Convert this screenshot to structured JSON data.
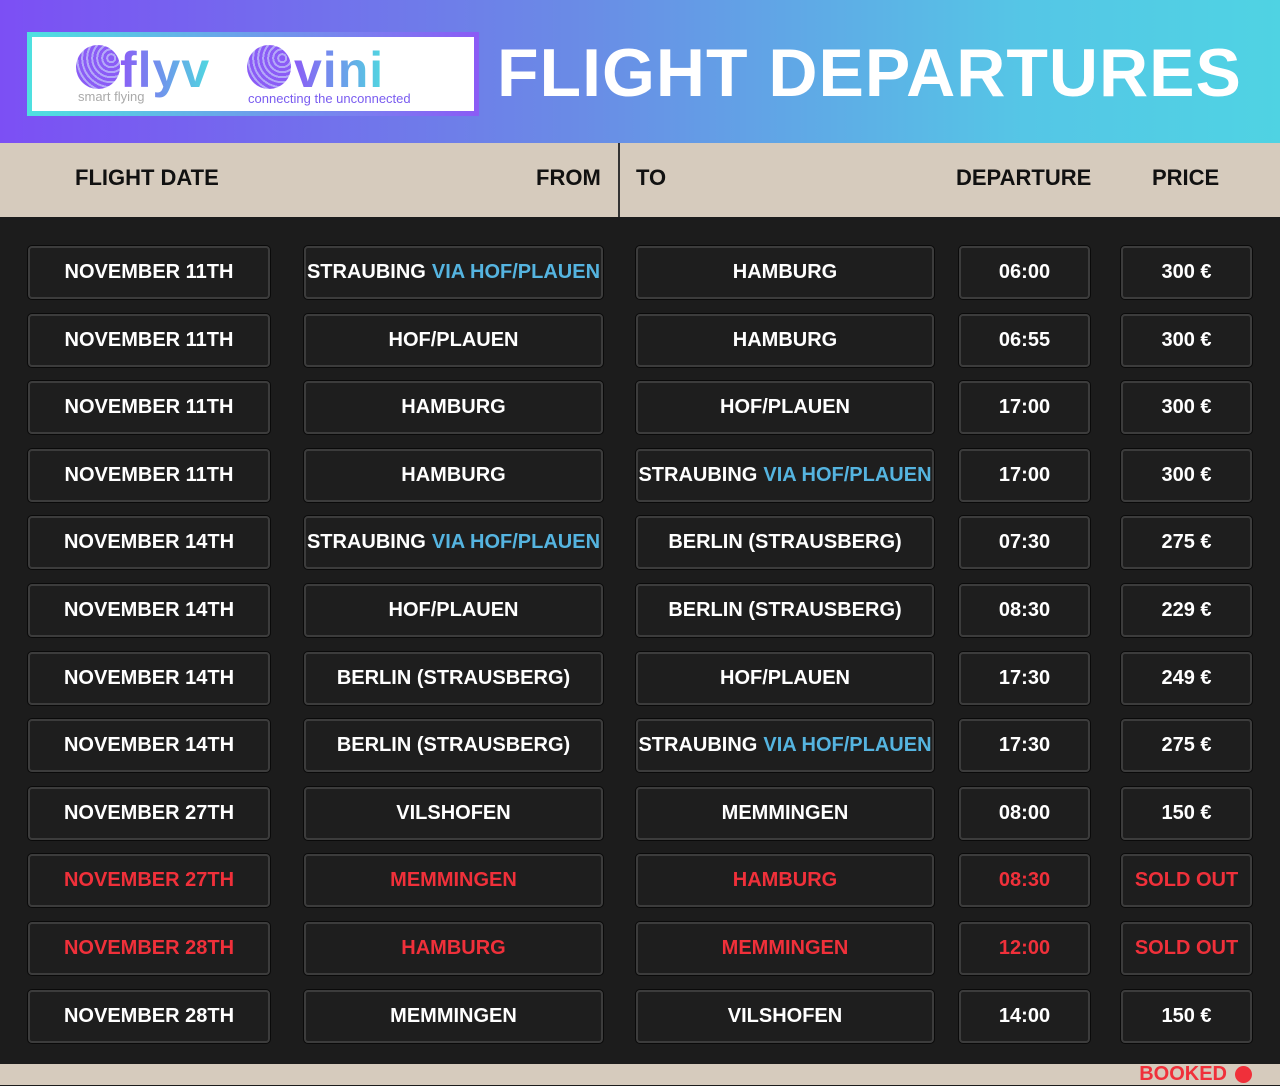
{
  "logo": {
    "brand1": "flyv",
    "tagline1": "smart flying",
    "brand2": "vini",
    "tagline2": "connecting the unconnected"
  },
  "title": "FLIGHT DEPARTURES",
  "columns": {
    "date": "FLIGHT DATE",
    "from": "FROM",
    "to": "TO",
    "departure": "DEPARTURE",
    "price": "PRICE"
  },
  "colors": {
    "accent": "#55b4e0",
    "sold_out": "#f0303a",
    "header_band": "#d6cbbd",
    "background": "#1c1c1c"
  },
  "rows": [
    {
      "date": "NOVEMBER 11TH",
      "from": "STRAUBING",
      "from_via": "VIA HOF/PLAUEN",
      "to": "HAMBURG",
      "to_via": "",
      "departure": "06:00",
      "price": "300 €",
      "sold_out": false
    },
    {
      "date": "NOVEMBER 11TH",
      "from": "HOF/PLAUEN",
      "from_via": "",
      "to": "HAMBURG",
      "to_via": "",
      "departure": "06:55",
      "price": "300 €",
      "sold_out": false
    },
    {
      "date": "NOVEMBER 11TH",
      "from": "HAMBURG",
      "from_via": "",
      "to": "HOF/PLAUEN",
      "to_via": "",
      "departure": "17:00",
      "price": "300 €",
      "sold_out": false
    },
    {
      "date": "NOVEMBER 11TH",
      "from": "HAMBURG",
      "from_via": "",
      "to": "STRAUBING",
      "to_via": "VIA HOF/PLAUEN",
      "departure": "17:00",
      "price": "300 €",
      "sold_out": false
    },
    {
      "date": "NOVEMBER 14TH",
      "from": "STRAUBING",
      "from_via": "VIA HOF/PLAUEN",
      "to": "BERLIN (STRAUSBERG)",
      "to_via": "",
      "departure": "07:30",
      "price": "275 €",
      "sold_out": false
    },
    {
      "date": "NOVEMBER 14TH",
      "from": "HOF/PLAUEN",
      "from_via": "",
      "to": "BERLIN (STRAUSBERG)",
      "to_via": "",
      "departure": "08:30",
      "price": "229 €",
      "sold_out": false
    },
    {
      "date": "NOVEMBER 14TH",
      "from": "BERLIN (STRAUSBERG)",
      "from_via": "",
      "to": "HOF/PLAUEN",
      "to_via": "",
      "departure": "17:30",
      "price": "249 €",
      "sold_out": false
    },
    {
      "date": "NOVEMBER 14TH",
      "from": "BERLIN (STRAUSBERG)",
      "from_via": "",
      "to": "STRAUBING",
      "to_via": "VIA HOF/PLAUEN",
      "departure": "17:30",
      "price": "275 €",
      "sold_out": false
    },
    {
      "date": "NOVEMBER 27TH",
      "from": "VILSHOFEN",
      "from_via": "",
      "to": "MEMMINGEN",
      "to_via": "",
      "departure": "08:00",
      "price": "150 €",
      "sold_out": false
    },
    {
      "date": "NOVEMBER 27TH",
      "from": "MEMMINGEN",
      "from_via": "",
      "to": "HAMBURG",
      "to_via": "",
      "departure": "08:30",
      "price": "SOLD OUT",
      "sold_out": true
    },
    {
      "date": "NOVEMBER 28TH",
      "from": "HAMBURG",
      "from_via": "",
      "to": "MEMMINGEN",
      "to_via": "",
      "departure": "12:00",
      "price": "SOLD OUT",
      "sold_out": true
    },
    {
      "date": "NOVEMBER 28TH",
      "from": "MEMMINGEN",
      "from_via": "",
      "to": "VILSHOFEN",
      "to_via": "",
      "departure": "14:00",
      "price": "150 €",
      "sold_out": false
    }
  ],
  "legend": {
    "label": "BOOKED",
    "icon": "red-dot-icon"
  }
}
